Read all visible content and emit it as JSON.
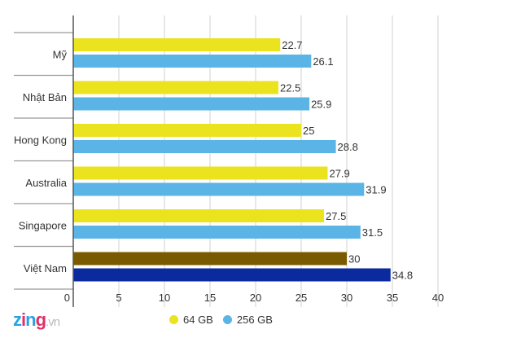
{
  "chart_data": {
    "type": "bar",
    "orientation": "horizontal",
    "categories": [
      "Mỹ",
      "Nhật Bản",
      "Hong Kong",
      "Australia",
      "Singapore",
      "Việt Nam"
    ],
    "series": [
      {
        "name": "64 GB",
        "color": "#ebe31e",
        "values": [
          22.7,
          22.5,
          25,
          27.9,
          27.5,
          30
        ]
      },
      {
        "name": "256 GB",
        "color": "#5ab4e5",
        "values": [
          26.1,
          25.9,
          28.8,
          31.9,
          31.5,
          34.8
        ]
      }
    ],
    "highlight": {
      "category": "Việt Nam",
      "colors": [
        "#7a5a00",
        "#0a2a9e"
      ]
    },
    "data_labels": [
      [
        "22.7",
        "22.5",
        "25",
        "27.9",
        "27.5",
        "30"
      ],
      [
        "26.1",
        "25.9",
        "28.8",
        "31.9",
        "31.5",
        "34.8"
      ]
    ],
    "xlim": [
      0,
      40
    ],
    "xticks": [
      "0",
      "5",
      "10",
      "15",
      "20",
      "25",
      "30",
      "35",
      "40"
    ],
    "grid": true,
    "legend_position": "bottom"
  },
  "legend": {
    "items": [
      "64 GB",
      "256 GB"
    ]
  },
  "logo": {
    "text": "zing",
    "suffix": ".vn"
  }
}
